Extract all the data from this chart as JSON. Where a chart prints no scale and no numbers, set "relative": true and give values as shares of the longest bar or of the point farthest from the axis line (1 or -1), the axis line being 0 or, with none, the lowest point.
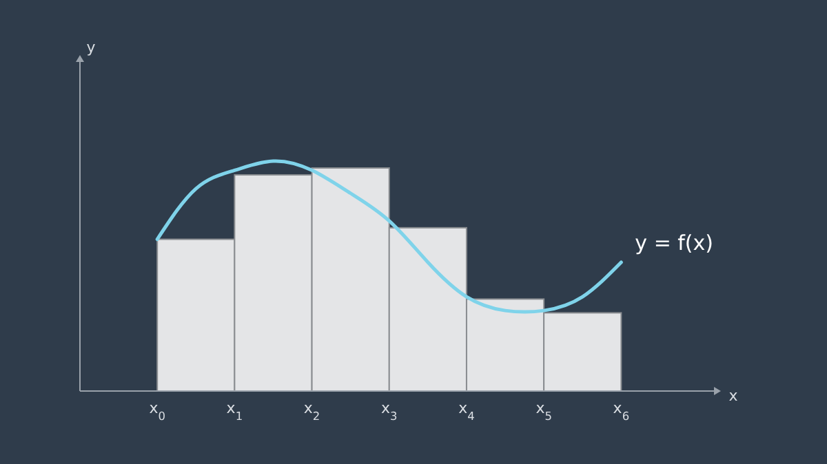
{
  "chart_data": {
    "type": "histogram",
    "relative": true,
    "xlabel": "x",
    "bins": [
      0,
      1,
      2,
      3,
      4,
      5,
      6
    ],
    "xlim": [
      -1,
      7.2
    ],
    "xticks": [
      {
        "value": 0,
        "label": "x$_{0}$"
      },
      {
        "value": 1,
        "label": "x$_{1}$"
      },
      {
        "value": 2,
        "label": "x$_{2}$"
      },
      {
        "value": 3,
        "label": "x$_{3}$"
      },
      {
        "value": 4,
        "label": "x$_{4}$"
      },
      {
        "value": 5,
        "label": "x$_{5}$"
      },
      {
        "value": 6,
        "label": "x$_{6}$"
      }
    ],
    "series": [
      {
        "color": "#e4e5e7",
        "values": [
          0.66,
          0.94,
          0.97,
          0.71,
          0.4,
          0.34
        ]
      },
      {
        "type": "line",
        "color": "#7fd3ea",
        "x": [
          0,
          0.5,
          1,
          1.5,
          2,
          2.5,
          3,
          3.5,
          4,
          4.5,
          5,
          5.5,
          6
        ],
        "values": [
          0.66,
          0.88,
          0.96,
          1,
          0.96,
          0.86,
          0.74,
          0.56,
          0.41,
          0.35,
          0.35,
          0.41,
          0.56
        ]
      }
    ],
    "annotations": [
      "y",
      {
        "text": "y = f(x)",
        "x": 6,
        "y": 0.56
      }
    ],
    "grid": false
  }
}
